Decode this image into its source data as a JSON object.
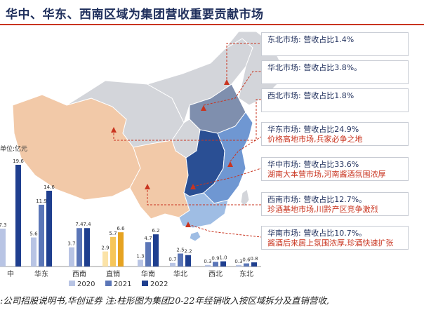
{
  "title": "华中、华东、西南区域为集团营收重要贡献市场",
  "source": ":公司招股说明书,华创证券 注:柱形图为集团20-22年经销收入按区域拆分及直销营收,",
  "colors": {
    "accent_red": "#c9341f",
    "navy": "#1f2f5c",
    "series_2020": "#b8c4e4",
    "series_2021": "#5b76b7",
    "series_2022": "#1f3f8f",
    "series_2020_direct": "#fbe3a8",
    "series_2021_direct": "#f6c65a",
    "series_2022_direct": "#e6a321"
  },
  "regions": [
    {
      "id": "northeast",
      "l1": "东北市场: 营收占比1.4%",
      "l2": ""
    },
    {
      "id": "north",
      "l1": "华北市场: 营收占比3.8%。",
      "l2": ""
    },
    {
      "id": "northwest",
      "l1": "西北市场: 营收占比1.8%",
      "l2": ""
    },
    {
      "id": "east",
      "l1": "华东市场: 营收占比24.9%",
      "l2": "价格高地市场,兵家必争之地"
    },
    {
      "id": "central",
      "l1": "华中市场: 营收占比33.6%",
      "l2": "湖南大本营市场,河南酱酒氛围浓厚"
    },
    {
      "id": "southwest",
      "l1": "西南市场: 营收占比12.7%。",
      "l2": "珍酒基地市场,川黔产区竞争激烈"
    },
    {
      "id": "south",
      "l1": "华南市场: 营收占比10.7%。",
      "l2": "酱酒后来居上氛围浓厚,珍酒快速扩张"
    }
  ],
  "chart_data": {
    "type": "bar",
    "unit_label": "单位:亿元",
    "categories": [
      "中",
      "华东",
      "西南",
      "直销",
      "华南",
      "华北",
      "西北",
      "东北"
    ],
    "series": [
      {
        "name": "2020",
        "values": [
          7.3,
          5.6,
          3.7,
          2.9,
          1.3,
          0.7,
          0.3,
          0.3
        ]
      },
      {
        "name": "2021",
        "values": [
          null,
          11.9,
          7.4,
          5.7,
          4.7,
          2.5,
          0.9,
          0.6
        ]
      },
      {
        "name": "2022",
        "values": [
          19.6,
          14.6,
          7.4,
          6.6,
          6.2,
          2.2,
          1.0,
          0.8
        ]
      }
    ],
    "value_labels": [
      [
        "7.3",
        "",
        "19.6"
      ],
      [
        "5.6",
        "11.9",
        "14.6"
      ],
      [
        "3.7",
        "7.4",
        "7.4"
      ],
      [
        "2.9",
        "5.7",
        "6.6"
      ],
      [
        "1.3",
        "4.7",
        "6.2"
      ],
      [
        "0.7",
        "2.5",
        "2.2"
      ],
      [
        "0.3",
        "0.9",
        "1.0"
      ],
      [
        "0.3",
        "0.6",
        "0.8"
      ]
    ],
    "legend": [
      "2020",
      "2021",
      "2022"
    ],
    "legend_position": "bottom"
  }
}
